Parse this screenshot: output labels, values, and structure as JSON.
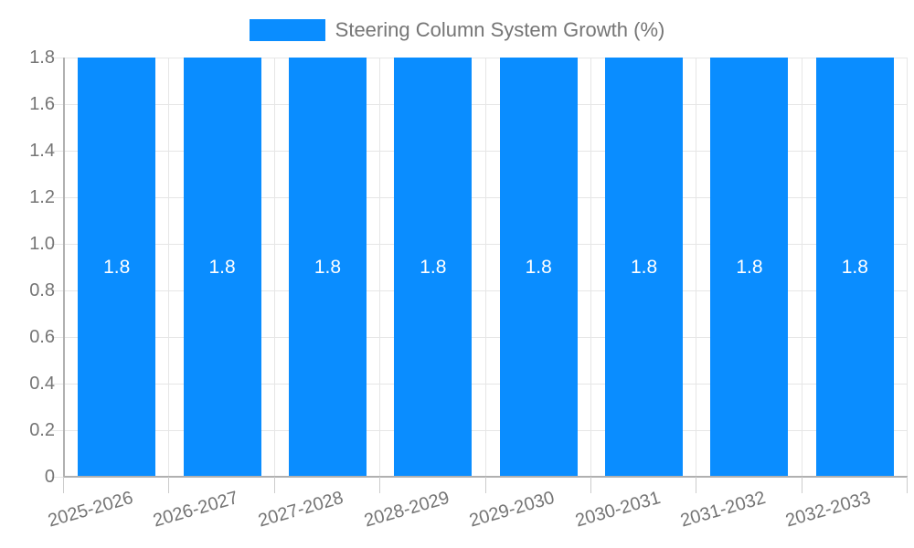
{
  "chart_data": {
    "type": "bar",
    "title": "Steering Column System Growth (%)",
    "categories": [
      "2025-2026",
      "2026-2027",
      "2027-2028",
      "2028-2029",
      "2029-2030",
      "2030-2031",
      "2031-2032",
      "2032-2033"
    ],
    "series": [
      {
        "name": "Steering Column System Growth (%)",
        "values": [
          1.8,
          1.8,
          1.8,
          1.8,
          1.8,
          1.8,
          1.8,
          1.8
        ]
      }
    ],
    "value_labels": [
      "1.8",
      "1.8",
      "1.8",
      "1.8",
      "1.8",
      "1.8",
      "1.8",
      "1.8"
    ],
    "xlabel": "",
    "ylabel": "",
    "ylim": [
      0,
      1.8
    ],
    "ytick_step": 0.2,
    "yticks": [
      "0",
      "0.2",
      "0.4",
      "0.6",
      "0.8",
      "1.0",
      "1.2",
      "1.4",
      "1.6",
      "1.8"
    ],
    "grid": true,
    "legend_position": "top",
    "xlabel_rotation_deg": -16
  },
  "legend": {
    "label": "Steering Column System Growth (%)"
  },
  "colors": {
    "bar": "#0a8dff",
    "grid_line": "#e6e6e6",
    "axis_line": "#b0b0b0",
    "tick_mark": "#cccccc",
    "axis_text": "#757575",
    "bar_label_text": "#ffffff",
    "background": "#ffffff"
  }
}
